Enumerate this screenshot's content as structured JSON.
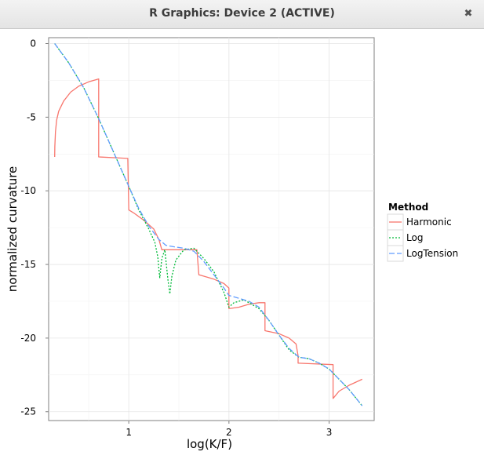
{
  "window": {
    "title": "R Graphics: Device 2 (ACTIVE)",
    "close_icon": "close-icon"
  },
  "chart_data": {
    "type": "line",
    "xlabel": "log(K/F)",
    "ylabel": "normalized curvature",
    "xlim": [
      0.2,
      3.45
    ],
    "ylim": [
      -25.6,
      0.4
    ],
    "x_ticks": [
      1,
      2,
      3
    ],
    "y_ticks": [
      0,
      -5,
      -10,
      -15,
      -20,
      -25
    ],
    "grid": true,
    "legend": {
      "title": "Method",
      "placement": "right"
    },
    "series": [
      {
        "name": "Harmonic",
        "color": "#f8766d",
        "dash": "solid",
        "points": [
          [
            0.26,
            -7.7
          ],
          [
            0.262,
            -7.0
          ],
          [
            0.268,
            -6.0
          ],
          [
            0.28,
            -5.2
          ],
          [
            0.3,
            -4.6
          ],
          [
            0.35,
            -3.9
          ],
          [
            0.42,
            -3.3
          ],
          [
            0.5,
            -2.9
          ],
          [
            0.6,
            -2.6
          ],
          [
            0.7,
            -2.4
          ],
          [
            0.7,
            -7.7
          ],
          [
            0.99,
            -7.8
          ],
          [
            1.0,
            -11.3
          ],
          [
            1.05,
            -11.5
          ],
          [
            1.15,
            -12.0
          ],
          [
            1.25,
            -12.6
          ],
          [
            1.3,
            -13.3
          ],
          [
            1.33,
            -14.0
          ],
          [
            1.68,
            -14.0
          ],
          [
            1.7,
            -15.7
          ],
          [
            1.85,
            -16.0
          ],
          [
            1.95,
            -16.3
          ],
          [
            2.0,
            -16.6
          ],
          [
            2.0,
            -18.0
          ],
          [
            2.1,
            -17.9
          ],
          [
            2.2,
            -17.7
          ],
          [
            2.3,
            -17.6
          ],
          [
            2.36,
            -17.6
          ],
          [
            2.36,
            -19.5
          ],
          [
            2.5,
            -19.7
          ],
          [
            2.6,
            -20.0
          ],
          [
            2.67,
            -20.4
          ],
          [
            2.69,
            -21.2
          ],
          [
            2.69,
            -21.7
          ],
          [
            3.04,
            -21.8
          ],
          [
            3.04,
            -24.1
          ],
          [
            3.1,
            -23.6
          ],
          [
            3.2,
            -23.2
          ],
          [
            3.33,
            -22.8
          ]
        ]
      },
      {
        "name": "Log",
        "color": "#00ba38",
        "dash": "dotted",
        "points": [
          [
            0.26,
            0.0
          ],
          [
            0.4,
            -1.3
          ],
          [
            0.55,
            -3.0
          ],
          [
            0.7,
            -5.1
          ],
          [
            0.85,
            -7.4
          ],
          [
            1.0,
            -9.7
          ],
          [
            1.1,
            -11.3
          ],
          [
            1.2,
            -12.6
          ],
          [
            1.26,
            -13.5
          ],
          [
            1.29,
            -14.5
          ],
          [
            1.3,
            -15.3
          ],
          [
            1.31,
            -15.9
          ],
          [
            1.33,
            -14.6
          ],
          [
            1.36,
            -14.0
          ],
          [
            1.39,
            -16.0
          ],
          [
            1.41,
            -17.0
          ],
          [
            1.43,
            -15.8
          ],
          [
            1.47,
            -14.7
          ],
          [
            1.55,
            -14.0
          ],
          [
            1.65,
            -13.9
          ],
          [
            1.75,
            -14.6
          ],
          [
            1.85,
            -15.5
          ],
          [
            1.95,
            -16.9
          ],
          [
            2.0,
            -17.9
          ],
          [
            2.05,
            -17.6
          ],
          [
            2.15,
            -17.4
          ],
          [
            2.3,
            -18.0
          ],
          [
            2.4,
            -18.8
          ],
          [
            2.5,
            -19.8
          ],
          [
            2.6,
            -20.8
          ],
          [
            2.7,
            -21.3
          ],
          [
            2.8,
            -21.4
          ],
          [
            2.9,
            -21.7
          ],
          [
            3.0,
            -22.1
          ],
          [
            3.1,
            -22.8
          ],
          [
            3.2,
            -23.5
          ],
          [
            3.33,
            -24.6
          ]
        ]
      },
      {
        "name": "LogTension",
        "color": "#619cff",
        "dash": "dashed",
        "points": [
          [
            0.26,
            0.0
          ],
          [
            0.4,
            -1.3
          ],
          [
            0.55,
            -3.0
          ],
          [
            0.7,
            -5.1
          ],
          [
            0.85,
            -7.4
          ],
          [
            1.0,
            -9.7
          ],
          [
            1.1,
            -11.2
          ],
          [
            1.2,
            -12.4
          ],
          [
            1.3,
            -13.3
          ],
          [
            1.37,
            -13.7
          ],
          [
            1.45,
            -13.8
          ],
          [
            1.55,
            -13.9
          ],
          [
            1.65,
            -14.1
          ],
          [
            1.75,
            -14.8
          ],
          [
            1.85,
            -15.7
          ],
          [
            1.95,
            -16.6
          ],
          [
            2.0,
            -17.1
          ],
          [
            2.1,
            -17.3
          ],
          [
            2.2,
            -17.5
          ],
          [
            2.3,
            -17.9
          ],
          [
            2.4,
            -18.8
          ],
          [
            2.5,
            -19.8
          ],
          [
            2.6,
            -20.7
          ],
          [
            2.7,
            -21.3
          ],
          [
            2.8,
            -21.4
          ],
          [
            2.9,
            -21.7
          ],
          [
            3.0,
            -22.1
          ],
          [
            3.1,
            -22.8
          ],
          [
            3.2,
            -23.5
          ],
          [
            3.33,
            -24.6
          ]
        ]
      }
    ]
  }
}
